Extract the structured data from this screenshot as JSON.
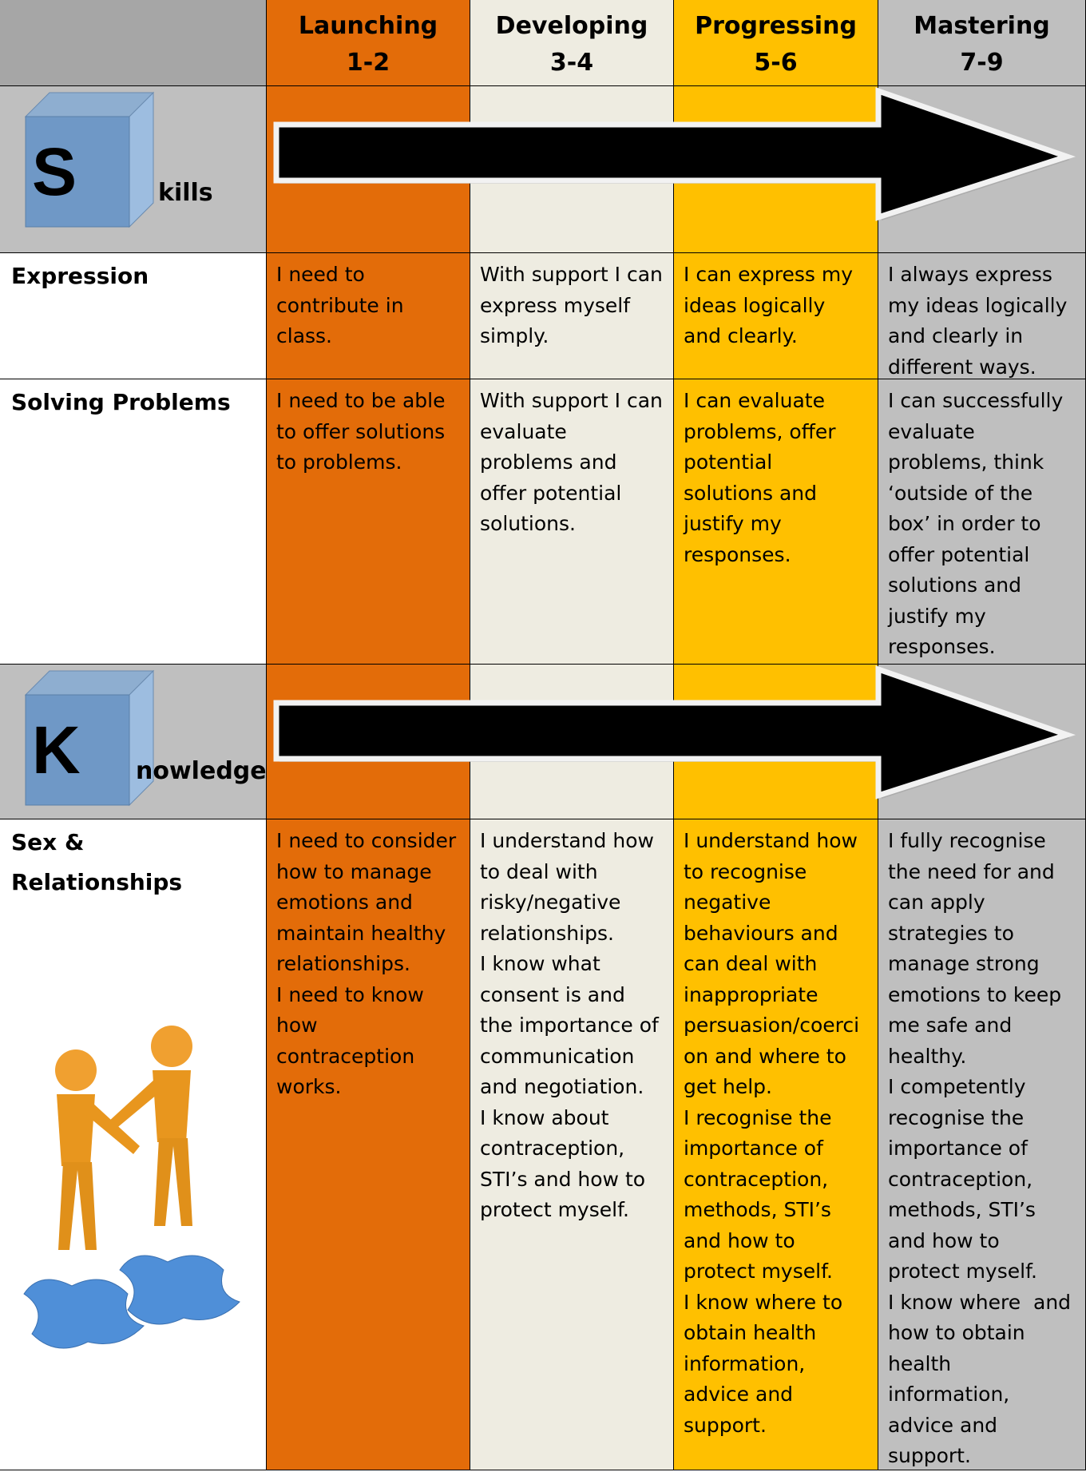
{
  "header": {
    "columns": [
      {
        "name": "Launching",
        "range": "1-2"
      },
      {
        "name": "Developing",
        "range": "3-4"
      },
      {
        "name": "Progressing",
        "range": "5-6"
      },
      {
        "name": "Mastering",
        "range": "7-9"
      }
    ]
  },
  "sections": [
    {
      "letter": "S",
      "label": "kills",
      "rows": [
        {
          "label": [
            "Expression"
          ],
          "cells": [
            [
              "I need to contribute in class."
            ],
            [
              "With support I can express myself simply."
            ],
            [
              "I can express my ideas logically and clearly."
            ],
            [
              "I always express my ideas logically and clearly in different ways."
            ]
          ]
        },
        {
          "label": [
            "Solving Problems"
          ],
          "cells": [
            [
              "I need to be able to offer solutions to problems."
            ],
            [
              "With support I can evaluate problems and offer potential solutions."
            ],
            [
              "I can evaluate problems, offer potential solutions and justify my responses."
            ],
            [
              "I can successfully evaluate problems, think ‘outside of the box’ in order to offer potential solutions and justify my responses."
            ]
          ]
        }
      ]
    },
    {
      "letter": "K",
      "label": "nowledge",
      "rows": [
        {
          "label": [
            "Sex &",
            "Relationships"
          ],
          "cells": [
            [
              "I need to consider how to manage emotions and maintain healthy relationships.",
              "I need to know how contraception works."
            ],
            [
              "I understand how to deal with risky/negative relationships.",
              "I know what consent is and the importance of communication and negotiation.",
              "I know about contraception, STI’s and how to protect myself."
            ],
            [
              "I understand how to recognise negative behaviours and can deal with inappropriate persuasion/coercion and where to get help.",
              "I recognise the importance of contraception, methods, STI’s and how to protect myself.",
              "I know where to obtain health information, advice and support."
            ],
            [
              "I fully recognise the need for and can apply strategies to manage strong emotions to keep me safe and healthy.",
              "I competently recognise the importance of contraception, methods, STI’s and how to protect myself.",
              "I know where  and how to obtain health information, advice and support."
            ]
          ]
        }
      ]
    }
  ]
}
